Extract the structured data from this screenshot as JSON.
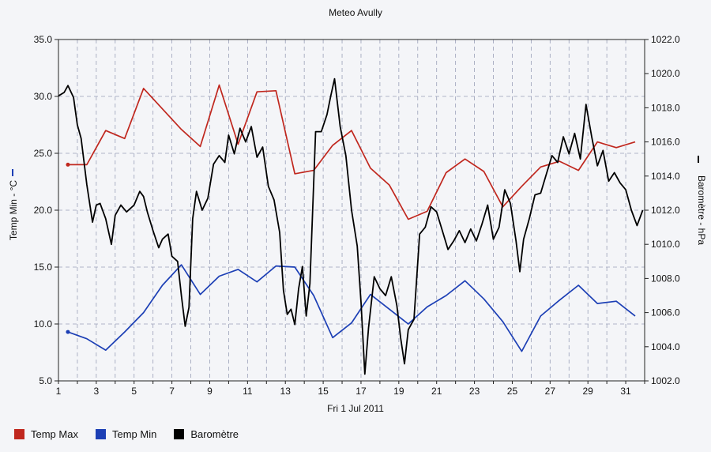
{
  "chart_data": {
    "type": "line",
    "title": "Meteo  Avully",
    "xlabel": "Fri 1 Jul 2011",
    "ylabel_left": "Temp Min - °C",
    "ylabel_right": "Baromètre - hPa",
    "left_axis": {
      "range": [
        5.0,
        35.0
      ],
      "ticks": [
        "5.0",
        "10.0",
        "15.0",
        "20.0",
        "25.0",
        "30.0",
        "35.0"
      ]
    },
    "right_axis": {
      "range": [
        1002.0,
        1022.0
      ],
      "ticks": [
        "1002.0",
        "1004.0",
        "1006.0",
        "1008.0",
        "1010.0",
        "1012.0",
        "1014.0",
        "1016.0",
        "1018.0",
        "1020.0",
        "1022.0"
      ]
    },
    "x_axis": {
      "range": [
        1,
        32
      ],
      "ticks": [
        "1",
        "3",
        "5",
        "7",
        "9",
        "11",
        "13",
        "15",
        "17",
        "19",
        "21",
        "23",
        "25",
        "27",
        "29",
        "31"
      ]
    },
    "grid": true,
    "legend_position": "bottom-left",
    "series": [
      {
        "name": "Temp Max",
        "color": "#c0271e",
        "axis": "left",
        "x": [
          1.5,
          2.5,
          3.5,
          4.5,
          5.5,
          6.5,
          7.5,
          8.5,
          9.5,
          10.5,
          11.5,
          12.5,
          13.5,
          14.5,
          15.5,
          16.5,
          17.5,
          18.5,
          19.5,
          20.5,
          21.5,
          22.5,
          23.5,
          24.5,
          25.5,
          26.5,
          27.5,
          28.5,
          29.5,
          30.5,
          31.5
        ],
        "values": [
          24.0,
          24.0,
          27.0,
          26.3,
          30.7,
          28.9,
          27.1,
          25.6,
          31.0,
          25.8,
          30.4,
          30.5,
          23.2,
          23.5,
          25.7,
          27.0,
          23.7,
          22.2,
          19.2,
          19.9,
          23.3,
          24.5,
          23.4,
          20.3,
          22.1,
          23.8,
          24.3,
          23.5,
          26.0,
          25.5,
          26.0
        ]
      },
      {
        "name": "Temp Min",
        "color": "#1c3fb5",
        "axis": "left",
        "x": [
          1.5,
          2.5,
          3.5,
          4.5,
          5.5,
          6.5,
          7.5,
          8.5,
          9.5,
          10.5,
          11.5,
          12.5,
          13.5,
          14.5,
          15.5,
          16.5,
          17.5,
          18.5,
          19.5,
          20.5,
          21.5,
          22.5,
          23.5,
          24.5,
          25.5,
          26.5,
          27.5,
          28.5,
          29.5,
          30.5,
          31.5
        ],
        "values": [
          9.3,
          8.7,
          7.7,
          9.3,
          11.0,
          13.4,
          15.2,
          12.6,
          14.2,
          14.8,
          13.7,
          15.1,
          15.0,
          12.5,
          8.8,
          10.1,
          12.6,
          11.3,
          10.0,
          11.5,
          12.5,
          13.8,
          12.2,
          10.2,
          7.6,
          10.7,
          12.1,
          13.4,
          11.8,
          12.0,
          10.7
        ]
      },
      {
        "name": "Baromètre",
        "color": "#000000",
        "axis": "right",
        "x": [
          1.0,
          1.3,
          1.5,
          1.8,
          2.0,
          2.2,
          2.5,
          2.8,
          3.0,
          3.2,
          3.5,
          3.8,
          4.0,
          4.3,
          4.6,
          5.0,
          5.3,
          5.5,
          5.7,
          6.0,
          6.3,
          6.5,
          6.8,
          7.0,
          7.3,
          7.5,
          7.7,
          7.9,
          8.1,
          8.3,
          8.6,
          8.9,
          9.2,
          9.5,
          9.8,
          10.0,
          10.3,
          10.6,
          10.9,
          11.2,
          11.5,
          11.8,
          12.1,
          12.4,
          12.7,
          12.9,
          13.1,
          13.3,
          13.5,
          13.7,
          13.9,
          14.1,
          14.3,
          14.6,
          14.9,
          15.2,
          15.4,
          15.6,
          15.9,
          16.2,
          16.5,
          16.8,
          17.0,
          17.2,
          17.4,
          17.7,
          18.0,
          18.3,
          18.6,
          18.9,
          19.1,
          19.3,
          19.5,
          19.8,
          20.1,
          20.4,
          20.7,
          21.0,
          21.3,
          21.6,
          21.9,
          22.2,
          22.5,
          22.8,
          23.1,
          23.4,
          23.7,
          24.0,
          24.3,
          24.6,
          24.9,
          25.2,
          25.4,
          25.6,
          25.9,
          26.2,
          26.5,
          26.8,
          27.1,
          27.4,
          27.7,
          28.0,
          28.3,
          28.6,
          28.9,
          29.2,
          29.5,
          29.8,
          30.1,
          30.4,
          30.7,
          31.0,
          31.3,
          31.6,
          31.9
        ],
        "values": [
          1018.7,
          1018.9,
          1019.3,
          1018.6,
          1017.0,
          1016.2,
          1013.5,
          1011.3,
          1012.3,
          1012.4,
          1011.5,
          1010.0,
          1011.7,
          1012.3,
          1011.9,
          1012.3,
          1013.1,
          1012.8,
          1011.9,
          1010.8,
          1009.8,
          1010.3,
          1010.6,
          1009.3,
          1009.0,
          1007.0,
          1005.2,
          1006.3,
          1011.5,
          1013.1,
          1012.0,
          1012.7,
          1014.7,
          1015.2,
          1014.8,
          1016.4,
          1015.3,
          1016.8,
          1016.0,
          1016.9,
          1015.1,
          1015.7,
          1013.4,
          1012.6,
          1010.7,
          1007.3,
          1005.9,
          1006.2,
          1005.3,
          1007.4,
          1008.7,
          1005.8,
          1007.7,
          1016.6,
          1016.6,
          1017.6,
          1018.7,
          1019.7,
          1016.9,
          1015.2,
          1012.0,
          1009.9,
          1006.6,
          1002.4,
          1005.1,
          1008.1,
          1007.4,
          1007.0,
          1008.1,
          1006.4,
          1004.5,
          1003.0,
          1005.0,
          1005.6,
          1010.6,
          1011.0,
          1012.2,
          1011.9,
          1010.8,
          1009.7,
          1010.2,
          1010.8,
          1010.1,
          1010.9,
          1010.2,
          1011.2,
          1012.3,
          1010.3,
          1011.0,
          1013.2,
          1012.4,
          1010.2,
          1008.4,
          1010.3,
          1011.5,
          1012.9,
          1013.0,
          1014.1,
          1015.2,
          1014.8,
          1016.3,
          1015.3,
          1016.5,
          1015.0,
          1018.2,
          1016.3,
          1014.6,
          1015.5,
          1013.7,
          1014.2,
          1013.6,
          1013.2,
          1012.0,
          1011.1,
          1012.0
        ]
      }
    ]
  }
}
